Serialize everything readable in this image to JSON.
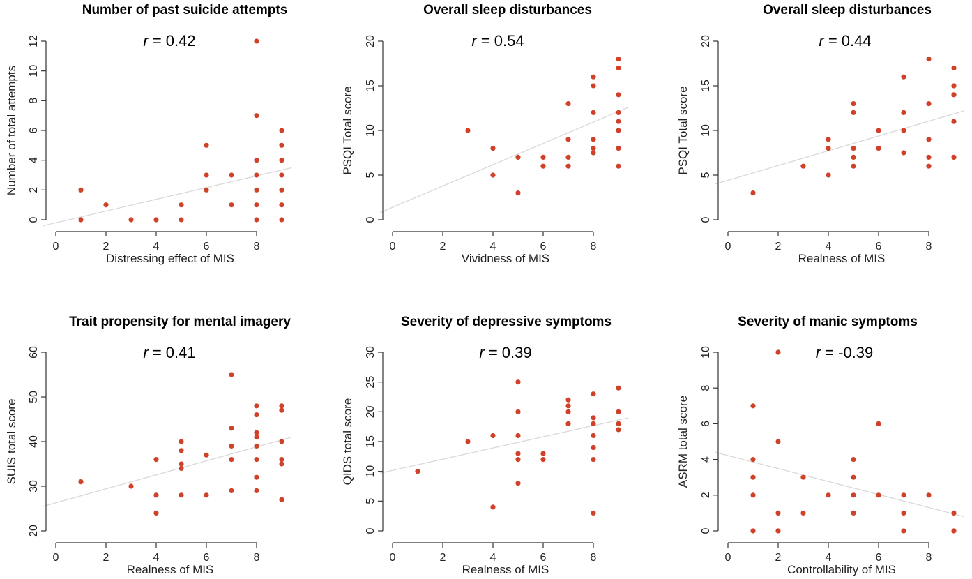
{
  "chart_data": [
    {
      "type": "scatter",
      "title": "Number of past suicide attempts",
      "r_label": "r",
      "r_value": " = 0.42",
      "xlabel": "Distressing effect of MIS",
      "ylabel": "Number of total attempts",
      "xlim": [
        0,
        9.4
      ],
      "ylim": [
        0,
        12
      ],
      "xticks": [
        0,
        2,
        4,
        6,
        8
      ],
      "yticks": [
        0,
        2,
        4,
        6,
        8,
        10,
        12
      ],
      "fit_line": {
        "x": [
          -0.5,
          9.4
        ],
        "y": [
          -0.4,
          3.5
        ]
      },
      "points": [
        [
          1,
          2
        ],
        [
          1,
          0
        ],
        [
          2,
          1
        ],
        [
          3,
          0
        ],
        [
          4,
          0
        ],
        [
          5,
          1
        ],
        [
          5,
          0
        ],
        [
          6,
          5
        ],
        [
          6,
          3
        ],
        [
          6,
          2
        ],
        [
          7,
          3
        ],
        [
          7,
          1
        ],
        [
          8,
          12
        ],
        [
          8,
          7
        ],
        [
          8,
          4
        ],
        [
          8,
          3
        ],
        [
          8,
          2
        ],
        [
          8,
          1
        ],
        [
          8,
          0
        ],
        [
          9,
          6
        ],
        [
          9,
          5
        ],
        [
          9,
          4
        ],
        [
          9,
          3
        ],
        [
          9,
          2
        ],
        [
          9,
          1
        ],
        [
          9,
          0
        ]
      ],
      "point_color": "#d0412a"
    },
    {
      "type": "scatter",
      "title": "Overall sleep disturbances",
      "r_label": "r",
      "r_value": " = 0.54",
      "xlabel": "Vividness of MIS",
      "ylabel": "PSQI Total score",
      "xlim": [
        0,
        9.4
      ],
      "ylim": [
        0,
        20
      ],
      "xticks": [
        0,
        2,
        4,
        6,
        8
      ],
      "yticks": [
        0,
        5,
        10,
        15,
        20
      ],
      "fit_line": {
        "x": [
          -0.5,
          9.4
        ],
        "y": [
          0.8,
          12.6
        ]
      },
      "points": [
        [
          3,
          10
        ],
        [
          4,
          8
        ],
        [
          4,
          5
        ],
        [
          5,
          7
        ],
        [
          5,
          3
        ],
        [
          6,
          7
        ],
        [
          6,
          6
        ],
        [
          7,
          13
        ],
        [
          7,
          9
        ],
        [
          7,
          7
        ],
        [
          7,
          6
        ],
        [
          8,
          16
        ],
        [
          8,
          15
        ],
        [
          8,
          12
        ],
        [
          8,
          9
        ],
        [
          8,
          8
        ],
        [
          8,
          7.5
        ],
        [
          9,
          18
        ],
        [
          9,
          17
        ],
        [
          9,
          14
        ],
        [
          9,
          12
        ],
        [
          9,
          11
        ],
        [
          9,
          10
        ],
        [
          9,
          8
        ],
        [
          9,
          6
        ]
      ],
      "point_color": "#d0412a"
    },
    {
      "type": "scatter",
      "title": "Overall sleep disturbances",
      "r_label": "r",
      "r_value": " = 0.44",
      "xlabel": "Realness of MIS",
      "ylabel": "PSQI Total score",
      "xlim": [
        0,
        9.4
      ],
      "ylim": [
        0,
        20
      ],
      "xticks": [
        0,
        2,
        4,
        6,
        8
      ],
      "yticks": [
        0,
        5,
        10,
        15,
        20
      ],
      "fit_line": {
        "x": [
          -0.5,
          9.4
        ],
        "y": [
          4.0,
          12.2
        ]
      },
      "points": [
        [
          1,
          3
        ],
        [
          3,
          6
        ],
        [
          4,
          9
        ],
        [
          4,
          8
        ],
        [
          4,
          5
        ],
        [
          5,
          13
        ],
        [
          5,
          12
        ],
        [
          5,
          8
        ],
        [
          5,
          7
        ],
        [
          5,
          6
        ],
        [
          6,
          10
        ],
        [
          6,
          8
        ],
        [
          7,
          16
        ],
        [
          7,
          12
        ],
        [
          7,
          10
        ],
        [
          7,
          7.5
        ],
        [
          8,
          18
        ],
        [
          8,
          13
        ],
        [
          8,
          9
        ],
        [
          8,
          7
        ],
        [
          8,
          6
        ],
        [
          9,
          17
        ],
        [
          9,
          15
        ],
        [
          9,
          14
        ],
        [
          9,
          11
        ],
        [
          9,
          7
        ]
      ],
      "point_color": "#d0412a"
    },
    {
      "type": "scatter",
      "title": "Trait propensity for mental imagery",
      "r_label": "r",
      "r_value": " = 0.41",
      "xlabel": "Realness of MIS",
      "ylabel": "SUIS total score",
      "xlim": [
        0,
        9.4
      ],
      "ylim": [
        20,
        60
      ],
      "xticks": [
        0,
        2,
        4,
        6,
        8
      ],
      "yticks": [
        20,
        30,
        40,
        50,
        60
      ],
      "fit_line": {
        "x": [
          -0.5,
          9.4
        ],
        "y": [
          25.5,
          41.0
        ]
      },
      "points": [
        [
          1,
          31
        ],
        [
          3,
          30
        ],
        [
          4,
          36
        ],
        [
          4,
          28
        ],
        [
          4,
          24
        ],
        [
          5,
          40
        ],
        [
          5,
          38
        ],
        [
          5,
          35
        ],
        [
          5,
          34
        ],
        [
          5,
          28
        ],
        [
          6,
          37
        ],
        [
          6,
          28
        ],
        [
          7,
          55
        ],
        [
          7,
          43
        ],
        [
          7,
          39
        ],
        [
          7,
          36
        ],
        [
          7,
          29
        ],
        [
          8,
          48
        ],
        [
          8,
          46
        ],
        [
          8,
          42
        ],
        [
          8,
          41
        ],
        [
          8,
          39
        ],
        [
          8,
          36
        ],
        [
          8,
          32
        ],
        [
          8,
          29
        ],
        [
          9,
          48
        ],
        [
          9,
          47
        ],
        [
          9,
          40
        ],
        [
          9,
          36
        ],
        [
          9,
          35
        ],
        [
          9,
          27
        ]
      ],
      "point_color": "#d0412a"
    },
    {
      "type": "scatter",
      "title": "Severity of depressive symptoms",
      "r_label": "r",
      "r_value": " = 0.39",
      "xlabel": "Realness of MIS",
      "ylabel": "QIDS total score",
      "xlim": [
        0,
        9.4
      ],
      "ylim": [
        0,
        30
      ],
      "xticks": [
        0,
        2,
        4,
        6,
        8
      ],
      "yticks": [
        0,
        5,
        10,
        15,
        20,
        25,
        30
      ],
      "fit_line": {
        "x": [
          -0.5,
          9.4
        ],
        "y": [
          9.7,
          19.0
        ]
      },
      "points": [
        [
          1,
          10
        ],
        [
          3,
          15
        ],
        [
          4,
          16
        ],
        [
          4,
          4
        ],
        [
          5,
          25
        ],
        [
          5,
          20
        ],
        [
          5,
          16
        ],
        [
          5,
          13
        ],
        [
          5,
          12
        ],
        [
          5,
          8
        ],
        [
          6,
          13
        ],
        [
          6,
          12
        ],
        [
          7,
          22
        ],
        [
          7,
          21
        ],
        [
          7,
          20
        ],
        [
          7,
          18
        ],
        [
          8,
          23
        ],
        [
          8,
          19
        ],
        [
          8,
          18
        ],
        [
          8,
          16
        ],
        [
          8,
          14
        ],
        [
          8,
          12
        ],
        [
          8,
          3
        ],
        [
          9,
          24
        ],
        [
          9,
          20
        ],
        [
          9,
          18
        ],
        [
          9,
          17
        ]
      ],
      "point_color": "#d0412a"
    },
    {
      "type": "scatter",
      "title": "Severity of manic symptoms",
      "r_label": "r",
      "r_value": " = -0.39",
      "xlabel": "Controllability of MIS",
      "ylabel": "ASRM total score",
      "xlim": [
        0,
        9.4
      ],
      "ylim": [
        0,
        10
      ],
      "xticks": [
        0,
        2,
        4,
        6,
        8
      ],
      "yticks": [
        0,
        2,
        4,
        6,
        8,
        10
      ],
      "fit_line": {
        "x": [
          -0.5,
          9.4
        ],
        "y": [
          4.4,
          0.8
        ]
      },
      "points": [
        [
          1,
          7
        ],
        [
          1,
          4
        ],
        [
          1,
          3
        ],
        [
          1,
          2
        ],
        [
          1,
          0
        ],
        [
          2,
          10
        ],
        [
          2,
          5
        ],
        [
          2,
          1
        ],
        [
          2,
          0
        ],
        [
          3,
          3
        ],
        [
          3,
          1
        ],
        [
          4,
          2
        ],
        [
          5,
          4
        ],
        [
          5,
          3
        ],
        [
          5,
          2
        ],
        [
          5,
          1
        ],
        [
          6,
          6
        ],
        [
          6,
          2
        ],
        [
          7,
          2
        ],
        [
          7,
          1
        ],
        [
          7,
          0
        ],
        [
          8,
          2
        ],
        [
          9,
          1
        ],
        [
          9,
          0
        ]
      ],
      "point_color": "#d0412a"
    }
  ]
}
